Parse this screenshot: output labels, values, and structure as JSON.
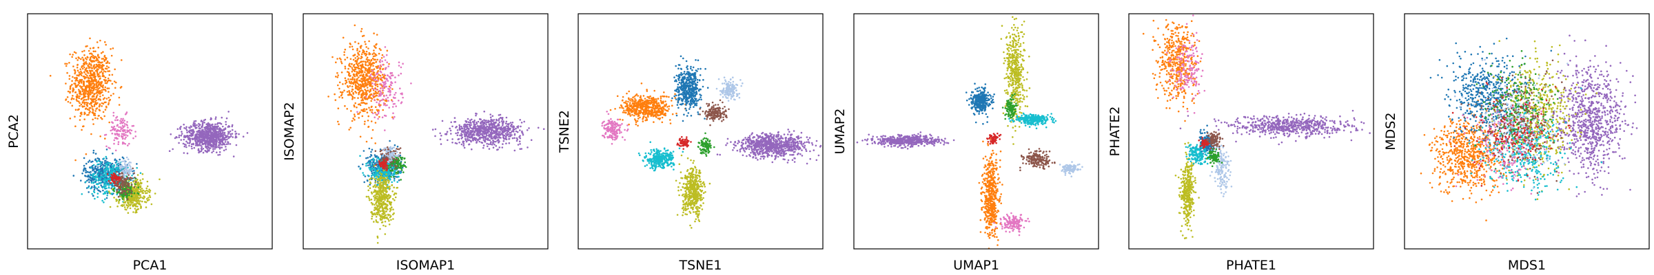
{
  "chart_data": [
    {
      "type": "scatter",
      "title": "",
      "xlabel": "PCA1",
      "ylabel": "PCA2",
      "xlim": [
        0,
        10
      ],
      "ylim": [
        0,
        10
      ],
      "grid": false,
      "clusters": [
        {
          "color": "#ff7f0e",
          "center": [
            2.6,
            7.0
          ],
          "spread": [
            0.75,
            1.4
          ],
          "count": 700
        },
        {
          "color": "#e377c2",
          "center": [
            3.8,
            5.0
          ],
          "spread": [
            0.5,
            0.6
          ],
          "count": 120
        },
        {
          "color": "#9467bd",
          "center": [
            7.4,
            4.8
          ],
          "spread": [
            0.9,
            0.55
          ],
          "count": 750
        },
        {
          "color": "#1f77b4",
          "center": [
            3.2,
            3.2
          ],
          "spread": [
            0.8,
            0.65
          ],
          "count": 420
        },
        {
          "color": "#17becf",
          "center": [
            3.4,
            3.0
          ],
          "spread": [
            0.8,
            0.7
          ],
          "count": 260
        },
        {
          "color": "#bcbd22",
          "center": [
            4.3,
            2.3
          ],
          "spread": [
            0.55,
            0.55
          ],
          "count": 380
        },
        {
          "color": "#2ca02c",
          "center": [
            4.0,
            2.5
          ],
          "spread": [
            0.4,
            0.4
          ],
          "count": 120
        },
        {
          "color": "#8c564b",
          "center": [
            3.9,
            2.8
          ],
          "spread": [
            0.4,
            0.4
          ],
          "count": 120
        },
        {
          "color": "#d62728",
          "center": [
            3.6,
            3.0
          ],
          "spread": [
            0.2,
            0.2
          ],
          "count": 60
        },
        {
          "color": "#aec7e8",
          "center": [
            4.0,
            3.4
          ],
          "spread": [
            0.3,
            0.3
          ],
          "count": 60
        }
      ]
    },
    {
      "type": "scatter",
      "title": "",
      "xlabel": "ISOMAP1",
      "ylabel": "ISOMAP2",
      "xlim": [
        0,
        10
      ],
      "ylim": [
        0,
        10
      ],
      "grid": false,
      "clusters": [
        {
          "color": "#ff7f0e",
          "center": [
            2.5,
            7.2
          ],
          "spread": [
            0.8,
            1.4
          ],
          "count": 650
        },
        {
          "color": "#e377c2",
          "center": [
            3.4,
            6.8
          ],
          "spread": [
            0.6,
            1.2
          ],
          "count": 150
        },
        {
          "color": "#9467bd",
          "center": [
            7.5,
            5.0
          ],
          "spread": [
            1.3,
            0.5
          ],
          "count": 700
        },
        {
          "color": "#1f77b4",
          "center": [
            3.3,
            3.5
          ],
          "spread": [
            0.6,
            0.6
          ],
          "count": 350
        },
        {
          "color": "#17becf",
          "center": [
            3.3,
            3.3
          ],
          "spread": [
            0.55,
            0.55
          ],
          "count": 220
        },
        {
          "color": "#bcbd22",
          "center": [
            3.2,
            2.2
          ],
          "spread": [
            0.4,
            1.0
          ],
          "count": 400
        },
        {
          "color": "#2ca02c",
          "center": [
            3.8,
            3.6
          ],
          "spread": [
            0.35,
            0.35
          ],
          "count": 100
        },
        {
          "color": "#8c564b",
          "center": [
            3.5,
            3.9
          ],
          "spread": [
            0.4,
            0.4
          ],
          "count": 100
        },
        {
          "color": "#d62728",
          "center": [
            3.3,
            3.6
          ],
          "spread": [
            0.2,
            0.2
          ],
          "count": 50
        },
        {
          "color": "#aec7e8",
          "center": [
            3.6,
            4.0
          ],
          "spread": [
            0.3,
            0.3
          ],
          "count": 50
        }
      ]
    },
    {
      "type": "scatter",
      "title": "",
      "xlabel": "TSNE1",
      "ylabel": "TSNE2",
      "xlim": [
        0,
        10
      ],
      "ylim": [
        0,
        10
      ],
      "grid": false,
      "clusters": [
        {
          "color": "#ff7f0e",
          "center": [
            2.8,
            6.0
          ],
          "spread": [
            0.9,
            0.5
          ],
          "count": 500
        },
        {
          "color": "#e377c2",
          "center": [
            1.4,
            5.1
          ],
          "spread": [
            0.35,
            0.4
          ],
          "count": 160
        },
        {
          "color": "#1f77b4",
          "center": [
            4.5,
            6.8
          ],
          "spread": [
            0.45,
            0.8
          ],
          "count": 450
        },
        {
          "color": "#aec7e8",
          "center": [
            6.2,
            6.8
          ],
          "spread": [
            0.3,
            0.4
          ],
          "count": 140
        },
        {
          "color": "#8c564b",
          "center": [
            5.6,
            5.8
          ],
          "spread": [
            0.4,
            0.3
          ],
          "count": 160
        },
        {
          "color": "#9467bd",
          "center": [
            8.0,
            4.4
          ],
          "spread": [
            1.3,
            0.45
          ],
          "count": 750
        },
        {
          "color": "#17becf",
          "center": [
            3.3,
            3.8
          ],
          "spread": [
            0.55,
            0.35
          ],
          "count": 300
        },
        {
          "color": "#bcbd22",
          "center": [
            4.7,
            2.4
          ],
          "spread": [
            0.4,
            0.9
          ],
          "count": 450
        },
        {
          "color": "#2ca02c",
          "center": [
            5.2,
            4.4
          ],
          "spread": [
            0.25,
            0.3
          ],
          "count": 100
        },
        {
          "color": "#d62728",
          "center": [
            4.3,
            4.5
          ],
          "spread": [
            0.2,
            0.2
          ],
          "count": 60
        }
      ]
    },
    {
      "type": "scatter",
      "title": "",
      "xlabel": "UMAP1",
      "ylabel": "UMAP2",
      "xlim": [
        0,
        10
      ],
      "ylim": [
        0,
        10
      ],
      "grid": false,
      "clusters": [
        {
          "color": "#9467bd",
          "center": [
            2.2,
            4.6
          ],
          "spread": [
            1.2,
            0.2
          ],
          "count": 500
        },
        {
          "color": "#bcbd22",
          "center": [
            6.6,
            7.5
          ],
          "spread": [
            0.35,
            1.8
          ],
          "count": 450
        },
        {
          "color": "#1f77b4",
          "center": [
            5.2,
            6.3
          ],
          "spread": [
            0.35,
            0.45
          ],
          "count": 300
        },
        {
          "color": "#17becf",
          "center": [
            7.3,
            5.5
          ],
          "spread": [
            0.65,
            0.2
          ],
          "count": 250
        },
        {
          "color": "#ff7f0e",
          "center": [
            5.6,
            2.2
          ],
          "spread": [
            0.3,
            1.5
          ],
          "count": 500
        },
        {
          "color": "#e377c2",
          "center": [
            6.5,
            1.1
          ],
          "spread": [
            0.4,
            0.3
          ],
          "count": 150
        },
        {
          "color": "#8c564b",
          "center": [
            7.5,
            3.8
          ],
          "spread": [
            0.5,
            0.3
          ],
          "count": 180
        },
        {
          "color": "#aec7e8",
          "center": [
            8.8,
            3.4
          ],
          "spread": [
            0.35,
            0.2
          ],
          "count": 100
        },
        {
          "color": "#2ca02c",
          "center": [
            6.4,
            6.0
          ],
          "spread": [
            0.2,
            0.4
          ],
          "count": 100
        },
        {
          "color": "#d62728",
          "center": [
            5.7,
            4.7
          ],
          "spread": [
            0.2,
            0.2
          ],
          "count": 60
        }
      ]
    },
    {
      "type": "scatter",
      "title": "",
      "xlabel": "PHATE1",
      "ylabel": "PHATE2",
      "xlim": [
        0,
        10
      ],
      "ylim": [
        0,
        10
      ],
      "grid": false,
      "clusters": [
        {
          "color": "#ff7f0e",
          "center": [
            2.0,
            8.0
          ],
          "spread": [
            0.7,
            1.5
          ],
          "count": 450
        },
        {
          "color": "#e377c2",
          "center": [
            2.4,
            7.6
          ],
          "spread": [
            0.6,
            1.3
          ],
          "count": 150
        },
        {
          "color": "#9467bd",
          "center": [
            6.6,
            5.2
          ],
          "spread": [
            2.2,
            0.4
          ],
          "count": 600
        },
        {
          "color": "#bcbd22",
          "center": [
            2.4,
            2.4
          ],
          "spread": [
            0.25,
            1.3
          ],
          "count": 350
        },
        {
          "color": "#aec7e8",
          "center": [
            3.8,
            3.4
          ],
          "spread": [
            0.3,
            0.9
          ],
          "count": 140
        },
        {
          "color": "#1f77b4",
          "center": [
            3.2,
            4.5
          ],
          "spread": [
            0.35,
            0.4
          ],
          "count": 200
        },
        {
          "color": "#17becf",
          "center": [
            2.8,
            4.0
          ],
          "spread": [
            0.35,
            0.35
          ],
          "count": 150
        },
        {
          "color": "#8c564b",
          "center": [
            3.5,
            4.6
          ],
          "spread": [
            0.3,
            0.3
          ],
          "count": 100
        },
        {
          "color": "#2ca02c",
          "center": [
            3.5,
            3.9
          ],
          "spread": [
            0.2,
            0.3
          ],
          "count": 80
        },
        {
          "color": "#d62728",
          "center": [
            3.1,
            4.5
          ],
          "spread": [
            0.15,
            0.15
          ],
          "count": 40
        }
      ]
    },
    {
      "type": "scatter",
      "title": "",
      "xlabel": "MDS1",
      "ylabel": "MDS2",
      "xlim": [
        0,
        10
      ],
      "ylim": [
        0,
        10
      ],
      "grid": false,
      "clusters": [
        {
          "color": "#9467bd",
          "center": [
            7.6,
            5.5
          ],
          "spread": [
            1.2,
            2.0
          ],
          "count": 800
        },
        {
          "color": "#ff7f0e",
          "center": [
            2.6,
            4.0
          ],
          "spread": [
            1.3,
            1.4
          ],
          "count": 650
        },
        {
          "color": "#1f77b4",
          "center": [
            3.4,
            6.6
          ],
          "spread": [
            1.4,
            1.4
          ],
          "count": 500
        },
        {
          "color": "#bcbd22",
          "center": [
            5.4,
            5.6
          ],
          "spread": [
            1.3,
            2.2
          ],
          "count": 500
        },
        {
          "color": "#17becf",
          "center": [
            4.8,
            4.2
          ],
          "spread": [
            1.4,
            1.5
          ],
          "count": 400
        },
        {
          "color": "#2ca02c",
          "center": [
            4.6,
            6.0
          ],
          "spread": [
            1.3,
            1.6
          ],
          "count": 250
        },
        {
          "color": "#e377c2",
          "center": [
            4.2,
            4.6
          ],
          "spread": [
            1.4,
            1.6
          ],
          "count": 200
        },
        {
          "color": "#8c564b",
          "center": [
            4.6,
            5.2
          ],
          "spread": [
            1.5,
            1.8
          ],
          "count": 200
        },
        {
          "color": "#d62728",
          "center": [
            4.4,
            5.0
          ],
          "spread": [
            1.5,
            1.8
          ],
          "count": 150
        },
        {
          "color": "#aec7e8",
          "center": [
            4.6,
            5.4
          ],
          "spread": [
            1.5,
            1.8
          ],
          "count": 150
        }
      ]
    }
  ]
}
